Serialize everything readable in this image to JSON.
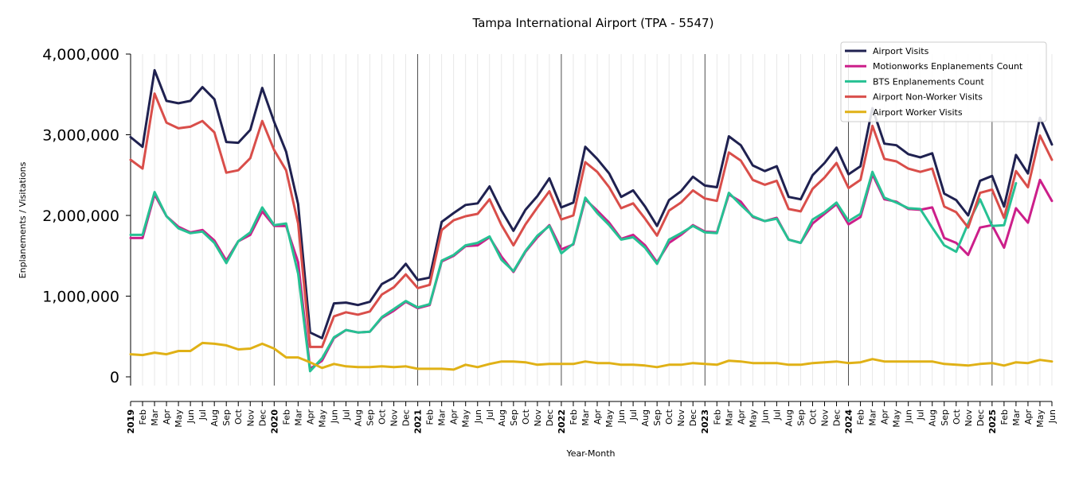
{
  "chart_data": {
    "type": "line",
    "title": "Tampa International Airport (TPA - 5547)",
    "xlabel": "Year-Month",
    "ylabel": "Enplanements / Visitations",
    "ylim": [
      -100000,
      4000000
    ],
    "yticks": [
      0,
      1000000,
      2000000,
      3000000,
      4000000
    ],
    "ytick_labels": [
      "0",
      "1,000,000",
      "2,000,000",
      "3,000,000",
      "4,000,000"
    ],
    "grid": "vertical minor lines per month; major lines at year starts",
    "legend_position": "top-right",
    "x": [
      "2019",
      "Feb",
      "Mar",
      "Apr",
      "May",
      "Jun",
      "Jul",
      "Aug",
      "Sep",
      "Oct",
      "Nov",
      "Dec",
      "2020",
      "Feb",
      "Mar",
      "Apr",
      "May",
      "Jun",
      "Jul",
      "Aug",
      "Sep",
      "Oct",
      "Nov",
      "Dec",
      "2021",
      "Feb",
      "Mar",
      "Apr",
      "May",
      "Jun",
      "Jul",
      "Aug",
      "Sep",
      "Oct",
      "Nov",
      "Dec",
      "2022",
      "Feb",
      "Mar",
      "Apr",
      "May",
      "Jun",
      "Jul",
      "Aug",
      "Sep",
      "Oct",
      "Nov",
      "Dec",
      "2023",
      "Feb",
      "Mar",
      "Apr",
      "May",
      "Jun",
      "Jul",
      "Aug",
      "Sep",
      "Oct",
      "Nov",
      "Dec",
      "2024",
      "Feb",
      "Mar",
      "Apr",
      "May",
      "Jun",
      "Jul",
      "Aug",
      "Sep",
      "Oct",
      "Nov",
      "Dec",
      "2025",
      "Feb",
      "Mar",
      "Apr",
      "May",
      "Jun"
    ],
    "series": [
      {
        "name": "Airport Visits",
        "color": "#1f2150",
        "values": [
          2970000,
          2850000,
          3800000,
          3420000,
          3390000,
          3420000,
          3590000,
          3440000,
          2910000,
          2900000,
          3060000,
          3580000,
          3160000,
          2790000,
          2140000,
          550000,
          480000,
          910000,
          920000,
          890000,
          930000,
          1150000,
          1230000,
          1400000,
          1200000,
          1230000,
          1920000,
          2030000,
          2130000,
          2150000,
          2360000,
          2060000,
          1810000,
          2070000,
          2240000,
          2460000,
          2100000,
          2160000,
          2850000,
          2700000,
          2520000,
          2230000,
          2310000,
          2110000,
          1870000,
          2190000,
          2300000,
          2480000,
          2370000,
          2350000,
          2980000,
          2870000,
          2620000,
          2550000,
          2610000,
          2230000,
          2200000,
          2500000,
          2650000,
          2840000,
          2510000,
          2610000,
          3330000,
          2890000,
          2870000,
          2760000,
          2720000,
          2770000,
          2270000,
          2190000,
          2000000,
          2430000,
          2490000,
          2110000,
          2750000,
          2520000,
          3210000,
          2880000
        ]
      },
      {
        "name": "Motionworks Enplanements Count",
        "color": "#cc1f8a",
        "values": [
          1720000,
          1720000,
          2260000,
          1990000,
          1860000,
          1790000,
          1820000,
          1690000,
          1440000,
          1680000,
          1760000,
          2050000,
          1870000,
          1870000,
          1420000,
          100000,
          200000,
          480000,
          580000,
          550000,
          560000,
          730000,
          820000,
          930000,
          850000,
          890000,
          1430000,
          1500000,
          1620000,
          1630000,
          1730000,
          1490000,
          1300000,
          1550000,
          1730000,
          1880000,
          1580000,
          1640000,
          2200000,
          2060000,
          1910000,
          1710000,
          1760000,
          1630000,
          1420000,
          1660000,
          1760000,
          1880000,
          1800000,
          1790000,
          2260000,
          2170000,
          1980000,
          1930000,
          1970000,
          1700000,
          1660000,
          1900000,
          2020000,
          2140000,
          1890000,
          1980000,
          2510000,
          2200000,
          2170000,
          2080000,
          2070000,
          2100000,
          1720000,
          1660000,
          1510000,
          1850000,
          1880000,
          1600000,
          2090000,
          1910000,
          2440000,
          2180000
        ]
      },
      {
        "name": "BTS Enplanements Count",
        "color": "#26c193",
        "values": [
          1760000,
          1760000,
          2290000,
          1990000,
          1840000,
          1780000,
          1800000,
          1660000,
          1410000,
          1680000,
          1790000,
          2100000,
          1880000,
          1900000,
          1280000,
          70000,
          230000,
          490000,
          580000,
          550000,
          560000,
          740000,
          840000,
          940000,
          860000,
          900000,
          1440000,
          1510000,
          1630000,
          1660000,
          1740000,
          1450000,
          1310000,
          1560000,
          1750000,
          1870000,
          1530000,
          1650000,
          2220000,
          2030000,
          1880000,
          1700000,
          1730000,
          1600000,
          1400000,
          1700000,
          1780000,
          1870000,
          1790000,
          1780000,
          2280000,
          2130000,
          1990000,
          1930000,
          1960000,
          1700000,
          1660000,
          1950000,
          2040000,
          2160000,
          1930000,
          2020000,
          2540000,
          2220000,
          2160000,
          2090000,
          2080000,
          1850000,
          1630000,
          1550000,
          1900000,
          2200000,
          1870000,
          1880000,
          2400000,
          null,
          null,
          null
        ]
      },
      {
        "name": "Airport Non-Worker Visits",
        "color": "#d94e4a",
        "values": [
          2690000,
          2580000,
          3510000,
          3150000,
          3080000,
          3100000,
          3170000,
          3030000,
          2530000,
          2560000,
          2710000,
          3170000,
          2810000,
          2560000,
          1900000,
          370000,
          370000,
          750000,
          800000,
          770000,
          810000,
          1020000,
          1110000,
          1270000,
          1100000,
          1140000,
          1820000,
          1940000,
          1990000,
          2020000,
          2200000,
          1880000,
          1630000,
          1890000,
          2100000,
          2300000,
          1950000,
          2000000,
          2660000,
          2540000,
          2350000,
          2090000,
          2150000,
          1960000,
          1750000,
          2060000,
          2160000,
          2310000,
          2210000,
          2180000,
          2780000,
          2680000,
          2440000,
          2380000,
          2430000,
          2080000,
          2050000,
          2330000,
          2470000,
          2650000,
          2340000,
          2440000,
          3110000,
          2700000,
          2670000,
          2580000,
          2540000,
          2580000,
          2110000,
          2040000,
          1850000,
          2280000,
          2320000,
          1970000,
          2550000,
          2350000,
          2990000,
          2690000
        ]
      },
      {
        "name": "Airport Worker Visits",
        "color": "#e0b116",
        "values": [
          280000,
          270000,
          300000,
          280000,
          320000,
          320000,
          420000,
          410000,
          390000,
          340000,
          350000,
          410000,
          350000,
          240000,
          240000,
          180000,
          110000,
          160000,
          130000,
          120000,
          120000,
          130000,
          120000,
          130000,
          100000,
          100000,
          100000,
          90000,
          150000,
          120000,
          160000,
          190000,
          190000,
          180000,
          150000,
          160000,
          160000,
          160000,
          190000,
          170000,
          170000,
          150000,
          150000,
          140000,
          120000,
          150000,
          150000,
          170000,
          160000,
          150000,
          200000,
          190000,
          170000,
          170000,
          170000,
          150000,
          150000,
          170000,
          180000,
          190000,
          170000,
          180000,
          220000,
          190000,
          190000,
          190000,
          190000,
          190000,
          160000,
          150000,
          140000,
          160000,
          170000,
          140000,
          180000,
          170000,
          210000,
          190000
        ]
      }
    ]
  }
}
